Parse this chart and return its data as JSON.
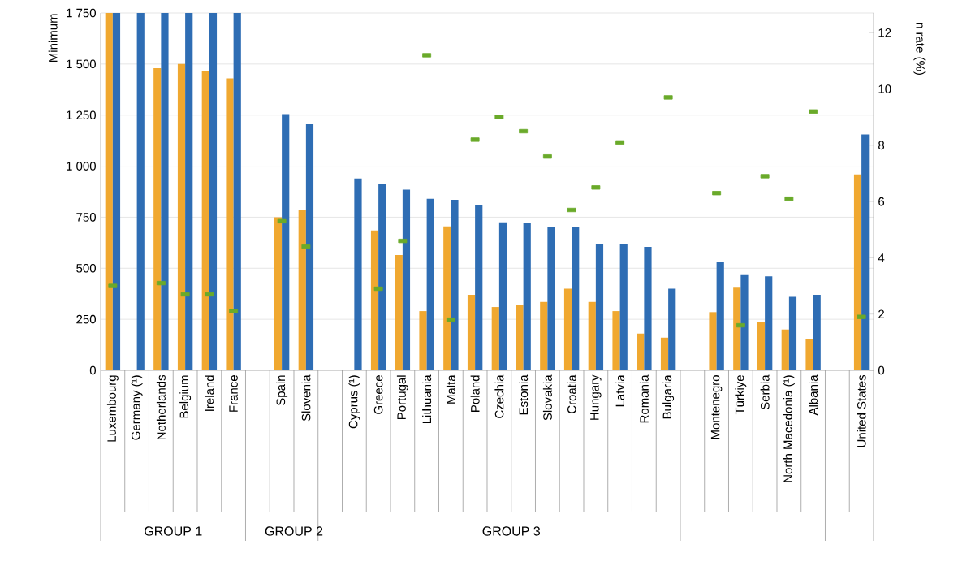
{
  "chart_data": {
    "type": "bar",
    "ylabel": "Minimum",
    "y2label": "n rate (%)",
    "categories": [
      "Luxembourg",
      "Germany (¹)",
      "Netherlands",
      "Belgium",
      "Ireland",
      "France",
      null,
      "Spain",
      "Slovenia",
      null,
      "Cyprus (¹)",
      "Greece",
      "Portugal",
      "Lithuania",
      "Malta",
      "Poland",
      "Czechia",
      "Estonia",
      "Slovakia",
      "Croatia",
      "Hungary",
      "Latvia",
      "Romania",
      "Bulgaria",
      null,
      "Montenegro",
      "Türkiye",
      "Serbia",
      "North Macedonia (¹)",
      "Albania",
      null,
      "United States"
    ],
    "series": [
      {
        "color": "#f0a830",
        "values": [
          1750,
          null,
          1480,
          1500,
          1465,
          1430,
          null,
          750,
          785,
          null,
          null,
          685,
          565,
          290,
          705,
          370,
          310,
          320,
          335,
          400,
          335,
          290,
          180,
          160,
          null,
          285,
          405,
          235,
          200,
          155,
          null,
          960
        ]
      },
      {
        "color": "#2e6db4",
        "values": [
          1750,
          1750,
          1750,
          1750,
          1750,
          1750,
          null,
          1255,
          1205,
          null,
          940,
          915,
          885,
          840,
          835,
          810,
          725,
          720,
          700,
          700,
          620,
          620,
          605,
          400,
          null,
          530,
          470,
          460,
          360,
          370,
          null,
          1155
        ]
      },
      {
        "type": "scatter",
        "axis": "y2",
        "color": "#6aaa2a",
        "values": [
          3.0,
          null,
          3.1,
          2.7,
          2.7,
          2.1,
          null,
          5.3,
          4.4,
          null,
          null,
          2.9,
          4.6,
          11.2,
          1.8,
          8.2,
          9.0,
          8.5,
          7.6,
          5.7,
          6.5,
          8.1,
          null,
          9.7,
          null,
          6.3,
          1.6,
          6.9,
          6.1,
          9.2,
          null,
          1.9
        ]
      }
    ],
    "ylim": [
      0,
      1750
    ],
    "yticks": [
      0,
      250,
      500,
      750,
      {
        "value": 1000,
        "label": "1 000"
      },
      {
        "value": 1250,
        "label": "1 250"
      },
      {
        "value": 1500,
        "label": "1 500"
      },
      {
        "value": 1750,
        "label": "1 750"
      }
    ],
    "y2lim": [
      0,
      12.7
    ],
    "y2ticks": [
      0,
      2,
      4,
      6,
      8,
      10,
      12
    ],
    "grid": "y",
    "annotations": [
      "GROUP 1",
      "GROUP 2",
      "GROUP 3"
    ]
  }
}
